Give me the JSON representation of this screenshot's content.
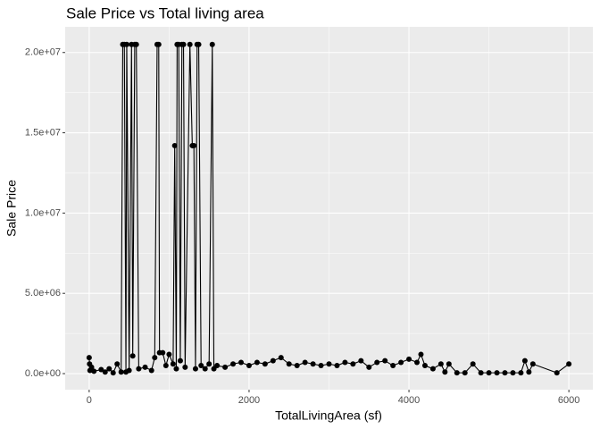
{
  "chart_data": {
    "type": "line",
    "title": "Sale Price vs Total living area",
    "x_label": "TotalLivingArea (sf)",
    "y_label": "Sale Price",
    "xlim": [
      -300,
      6300
    ],
    "ylim": [
      -1000000,
      21600000
    ],
    "xticks": [
      0,
      2000,
      4000,
      6000
    ],
    "yticks": [
      {
        "value": 0,
        "label": "0.0e+00"
      },
      {
        "value": 5000000,
        "label": "5.0e+06"
      },
      {
        "value": 10000000,
        "label": "1.0e+07"
      },
      {
        "value": 15000000,
        "label": "1.5e+07"
      },
      {
        "value": 20000000,
        "label": "2.0e+07"
      }
    ],
    "grid": true,
    "color": "#000000",
    "x": [
      0,
      5,
      10,
      30,
      60,
      150,
      200,
      250,
      300,
      350,
      400,
      420,
      440,
      460,
      470,
      500,
      530,
      545,
      570,
      590,
      620,
      700,
      780,
      820,
      850,
      870,
      880,
      920,
      960,
      1000,
      1050,
      1070,
      1090,
      1100,
      1120,
      1140,
      1160,
      1180,
      1200,
      1260,
      1290,
      1310,
      1330,
      1350,
      1370,
      1400,
      1450,
      1500,
      1540,
      1560,
      1600,
      1700,
      1800,
      1900,
      2000,
      2100,
      2200,
      2300,
      2400,
      2500,
      2600,
      2700,
      2800,
      2900,
      3000,
      3100,
      3200,
      3300,
      3400,
      3500,
      3600,
      3700,
      3800,
      3900,
      4000,
      4100,
      4150,
      4200,
      4300,
      4400,
      4450,
      4500,
      4600,
      4700,
      4800,
      4900,
      5000,
      5100,
      5200,
      5300,
      5400,
      5450,
      5500,
      5550,
      5850,
      6000
    ],
    "values": [
      1000000,
      600000,
      200000,
      400000,
      150000,
      250000,
      100000,
      300000,
      50000,
      600000,
      100000,
      20500000,
      20500000,
      100000,
      20500000,
      200000,
      20500000,
      1100000,
      20500000,
      20500000,
      300000,
      400000,
      200000,
      1000000,
      20500000,
      20500000,
      1300000,
      1300000,
      500000,
      1200000,
      600000,
      14200000,
      300000,
      20500000,
      20500000,
      800000,
      20500000,
      20500000,
      400000,
      20500000,
      14200000,
      14200000,
      300000,
      20500000,
      20500000,
      500000,
      300000,
      600000,
      20500000,
      300000,
      500000,
      400000,
      600000,
      700000,
      500000,
      700000,
      600000,
      800000,
      1000000,
      600000,
      500000,
      700000,
      600000,
      500000,
      600000,
      500000,
      700000,
      600000,
      800000,
      400000,
      700000,
      800000,
      500000,
      700000,
      900000,
      700000,
      1200000,
      500000,
      300000,
      600000,
      100000,
      600000,
      50000,
      50000,
      600000,
      50000,
      50000,
      50000,
      50000,
      50000,
      50000,
      800000,
      100000,
      600000,
      50000,
      600000
    ]
  }
}
